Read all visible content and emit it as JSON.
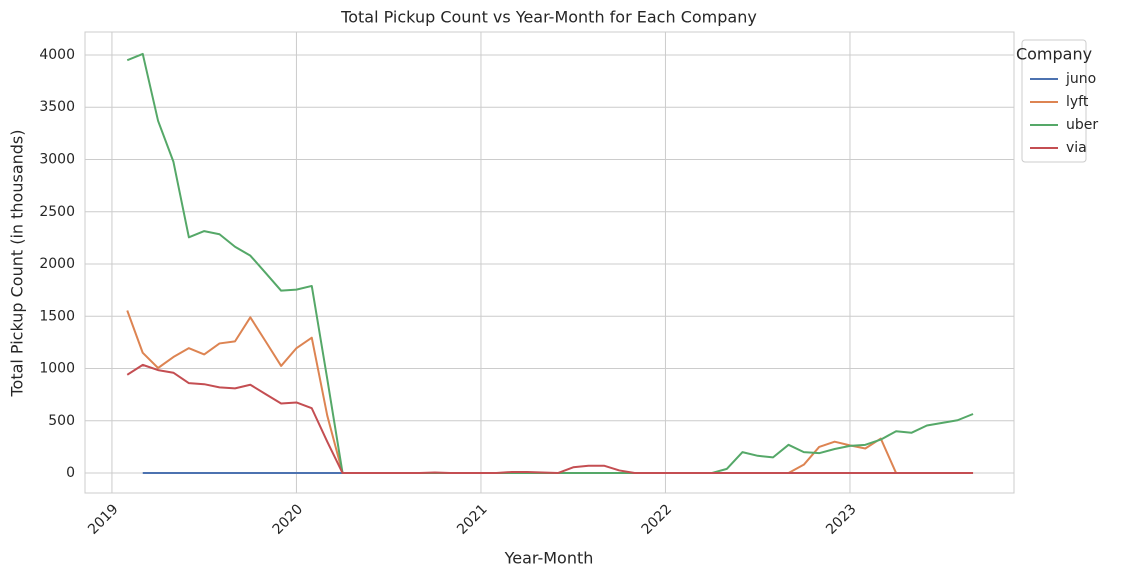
{
  "chart_data": {
    "type": "line",
    "title": "Total Pickup Count vs Year-Month for Each Company",
    "x_label": "Year-Month",
    "y_label": "Total Pickup Count (in thousands)",
    "legend_title": "Company",
    "legend_position": "outside right",
    "grid": true,
    "x": [
      2019.083,
      2019.167,
      2019.25,
      2019.333,
      2019.417,
      2019.5,
      2019.583,
      2019.667,
      2019.75,
      2019.833,
      2019.917,
      2020,
      2020.083,
      2020.167,
      2020.25,
      2020.333,
      2020.417,
      2020.5,
      2020.583,
      2020.667,
      2020.75,
      2020.833,
      2020.917,
      2021,
      2021.083,
      2021.167,
      2021.25,
      2021.333,
      2021.417,
      2021.5,
      2021.583,
      2021.667,
      2021.75,
      2021.833,
      2021.917,
      2022,
      2022.083,
      2022.167,
      2022.25,
      2022.333,
      2022.417,
      2022.5,
      2022.583,
      2022.667,
      2022.75,
      2022.833,
      2022.917,
      2023,
      2023.083,
      2023.167,
      2023.25,
      2023.333,
      2023.417,
      2023.5,
      2023.583,
      2023.667
    ],
    "series": [
      {
        "name": "juno",
        "color": "#4c72b0",
        "values": [
          null,
          0,
          0,
          0,
          0,
          0,
          0,
          0,
          0,
          0,
          0,
          0,
          0,
          0,
          0,
          null,
          null,
          null,
          null,
          null,
          null,
          null,
          null,
          null,
          null,
          null,
          null,
          null,
          null,
          null,
          null,
          null,
          null,
          null,
          null,
          null,
          null,
          null,
          null,
          null,
          null,
          null,
          null,
          null,
          null,
          null,
          null,
          null,
          null,
          null,
          null,
          null,
          null,
          null,
          null,
          null
        ]
      },
      {
        "name": "lyft",
        "color": "#dd8452",
        "values": [
          1555,
          1150,
          1005,
          1110,
          1195,
          1135,
          1240,
          1260,
          1490,
          1260,
          1025,
          1195,
          1295,
          550,
          0,
          0,
          0,
          0,
          0,
          0,
          0,
          0,
          0,
          0,
          0,
          0,
          0,
          0,
          0,
          0,
          0,
          0,
          0,
          0,
          0,
          0,
          0,
          0,
          0,
          0,
          0,
          0,
          0,
          0,
          80,
          250,
          300,
          265,
          235,
          330,
          0,
          0,
          0,
          0,
          0,
          0
        ]
      },
      {
        "name": "uber",
        "color": "#55a868",
        "values": [
          3950,
          4010,
          3370,
          2980,
          2255,
          2315,
          2285,
          2165,
          2080,
          1915,
          1745,
          1755,
          1790,
          900,
          0,
          0,
          0,
          0,
          0,
          0,
          0,
          0,
          0,
          0,
          0,
          0,
          0,
          0,
          0,
          0,
          0,
          0,
          0,
          0,
          0,
          0,
          0,
          0,
          0,
          40,
          200,
          165,
          150,
          270,
          200,
          190,
          230,
          260,
          270,
          320,
          400,
          385,
          455,
          480,
          505,
          565
        ]
      },
      {
        "name": "via",
        "color": "#c44e52",
        "values": [
          940,
          1035,
          985,
          960,
          860,
          850,
          820,
          810,
          845,
          755,
          665,
          675,
          620,
          300,
          0,
          0,
          0,
          0,
          0,
          0,
          5,
          0,
          0,
          0,
          0,
          10,
          10,
          5,
          0,
          55,
          70,
          70,
          25,
          0,
          0,
          0,
          0,
          0,
          0,
          0,
          0,
          0,
          0,
          0,
          0,
          0,
          0,
          0,
          0,
          0,
          0,
          0,
          0,
          0,
          0,
          0
        ]
      }
    ],
    "xlim": [
      2018.854,
      2023.889
    ],
    "xticks": [
      2019,
      2020,
      2021,
      2022,
      2023
    ],
    "ylim": [
      -191,
      4220
    ],
    "yticks": [
      0,
      500,
      1000,
      1500,
      2000,
      2500,
      3000,
      3500,
      4000
    ]
  }
}
